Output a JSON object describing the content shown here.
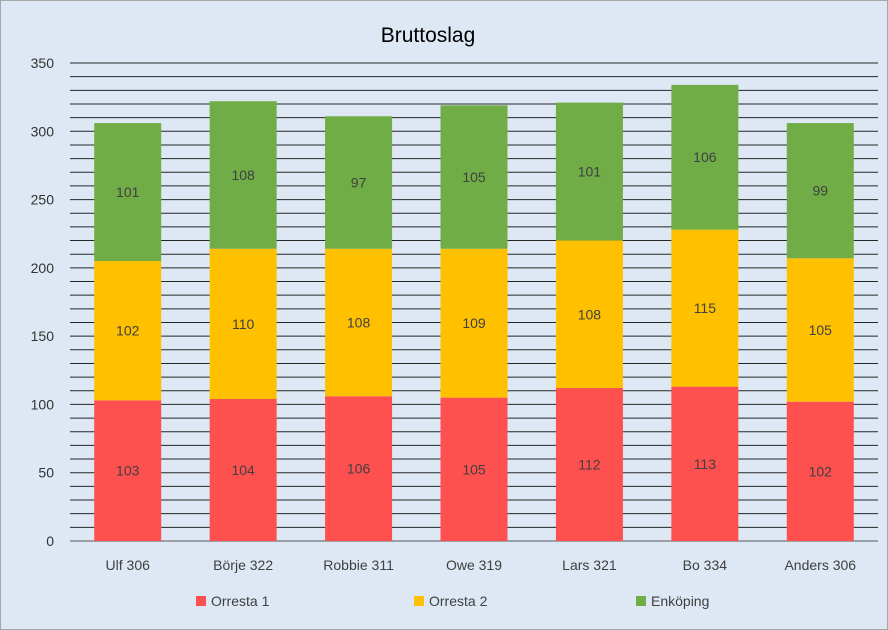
{
  "chart_data": {
    "type": "bar",
    "stacked": true,
    "title": "Bruttoslag",
    "xlabel": "",
    "ylabel": "",
    "ylim": [
      0,
      350
    ],
    "yticks": [
      0,
      50,
      100,
      150,
      200,
      250,
      300,
      350
    ],
    "grid": true,
    "legend_position": "bottom",
    "categories": [
      "Ulf 306",
      "Börje 322",
      "Robbie 311",
      "Owe 319",
      "Lars 321",
      "Bo 334",
      "Anders 306"
    ],
    "series": [
      {
        "name": "Orresta 1",
        "color": "#ff5050",
        "values": [
          103,
          104,
          106,
          105,
          112,
          113,
          102
        ]
      },
      {
        "name": "Orresta 2",
        "color": "#ffc000",
        "values": [
          102,
          110,
          108,
          109,
          108,
          115,
          105
        ]
      },
      {
        "name": "Enköping",
        "color": "#70ad47",
        "values": [
          101,
          108,
          97,
          105,
          101,
          106,
          99
        ]
      }
    ]
  }
}
